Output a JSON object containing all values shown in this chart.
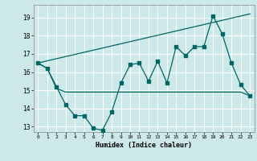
{
  "xlabel": "Humidex (Indice chaleur)",
  "bg_color": "#cce8e8",
  "grid_color": "#ffffff",
  "line_color": "#006666",
  "xlim": [
    -0.5,
    23.5
  ],
  "ylim": [
    12.7,
    19.7
  ],
  "yticks": [
    13,
    14,
    15,
    16,
    17,
    18,
    19
  ],
  "xticks": [
    0,
    1,
    2,
    3,
    4,
    5,
    6,
    7,
    8,
    9,
    10,
    11,
    12,
    13,
    14,
    15,
    16,
    17,
    18,
    19,
    20,
    21,
    22,
    23
  ],
  "zigzag_x": [
    0,
    1,
    2,
    3,
    4,
    5,
    6,
    7,
    8,
    9,
    10,
    11,
    12,
    13,
    14,
    15,
    16,
    17,
    18,
    19,
    20,
    21,
    22,
    23
  ],
  "zigzag_y": [
    16.5,
    16.2,
    15.2,
    14.2,
    13.6,
    13.6,
    12.9,
    12.8,
    13.8,
    15.4,
    16.4,
    16.5,
    15.5,
    16.6,
    15.4,
    17.4,
    16.9,
    17.4,
    17.4,
    19.1,
    18.1,
    16.5,
    15.3,
    14.7
  ],
  "flat_x": [
    0,
    1,
    2,
    3,
    4,
    5,
    9,
    10,
    11,
    12,
    13,
    14,
    15,
    16,
    17,
    18,
    19,
    20,
    21,
    22,
    23
  ],
  "flat_y": [
    16.5,
    16.2,
    15.1,
    14.9,
    14.9,
    14.9,
    14.9,
    14.9,
    14.9,
    14.9,
    14.9,
    14.9,
    14.9,
    14.9,
    14.9,
    14.9,
    14.9,
    14.9,
    14.9,
    14.9,
    14.7
  ],
  "trend_x": [
    0,
    23
  ],
  "trend_y": [
    16.5,
    19.2
  ]
}
